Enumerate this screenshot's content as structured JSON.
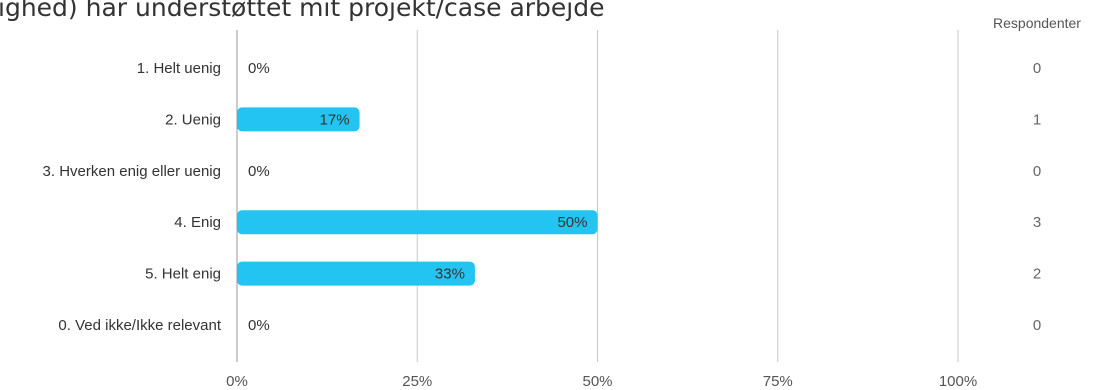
{
  "title": "ighed) har understøttet mit projekt/case arbejde",
  "respondents_label": "Respondenter",
  "chart_data": {
    "type": "bar",
    "orientation": "horizontal",
    "title": "ighed) har understøttet mit projekt/case arbejde",
    "categories": [
      "1. Helt uenig",
      "2. Uenig",
      "3. Hverken enig eller uenig",
      "4. Enig",
      "5. Helt enig",
      "0. Ved ikke/Ikke relevant"
    ],
    "values": [
      0,
      17,
      0,
      50,
      33,
      0
    ],
    "value_labels": [
      "0%",
      "17%",
      "0%",
      "50%",
      "33%",
      "0%"
    ],
    "counts": [
      0,
      1,
      0,
      3,
      2,
      0
    ],
    "xlim": [
      0,
      100
    ],
    "xticks": [
      "0%",
      "25%",
      "50%",
      "75%",
      "100%"
    ],
    "xtick_values": [
      0,
      25,
      50,
      75,
      100
    ],
    "grid": true,
    "bar_color": "#23c4f1"
  }
}
